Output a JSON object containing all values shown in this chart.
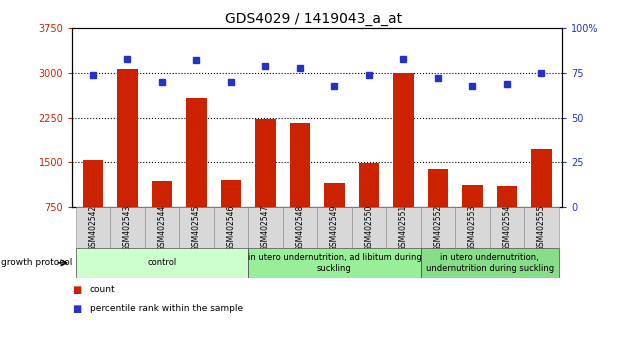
{
  "title": "GDS4029 / 1419043_a_at",
  "samples": [
    "GSM402542",
    "GSM402543",
    "GSM402544",
    "GSM402545",
    "GSM402546",
    "GSM402547",
    "GSM402548",
    "GSM402549",
    "GSM402550",
    "GSM402551",
    "GSM402552",
    "GSM402553",
    "GSM402554",
    "GSM402555"
  ],
  "count_values": [
    1540,
    3060,
    1180,
    2580,
    1200,
    2230,
    2160,
    1150,
    1490,
    3000,
    1390,
    1120,
    1100,
    1720
  ],
  "percentile_values": [
    74,
    83,
    70,
    82,
    70,
    79,
    78,
    68,
    74,
    83,
    72,
    68,
    69,
    75
  ],
  "ylim_left": [
    750,
    3750
  ],
  "ylim_right": [
    0,
    100
  ],
  "yticks_left": [
    750,
    1500,
    2250,
    3000,
    3750
  ],
  "yticks_right": [
    0,
    25,
    50,
    75,
    100
  ],
  "bar_color": "#cc2200",
  "dot_color": "#2233cc",
  "group_labels": [
    "control",
    "in utero undernutrition, ad libitum during\nsuckling",
    "in utero undernutrition,\nundernutrition during suckling"
  ],
  "group_ranges": [
    [
      0,
      4
    ],
    [
      5,
      9
    ],
    [
      10,
      13
    ]
  ],
  "group_colors_light": [
    "#ccffcc",
    "#aaffaa",
    "#aaffaa"
  ],
  "growth_protocol_label": "growth protocol",
  "legend_count": "count",
  "legend_percentile": "percentile rank within the sample",
  "dotted_lines": [
    1500,
    2250,
    3000
  ],
  "sample_bg_color": "#d8d8d8",
  "title_fontsize": 10,
  "tick_fontsize": 7,
  "sample_fontsize": 5.5,
  "group_fontsize": 6
}
